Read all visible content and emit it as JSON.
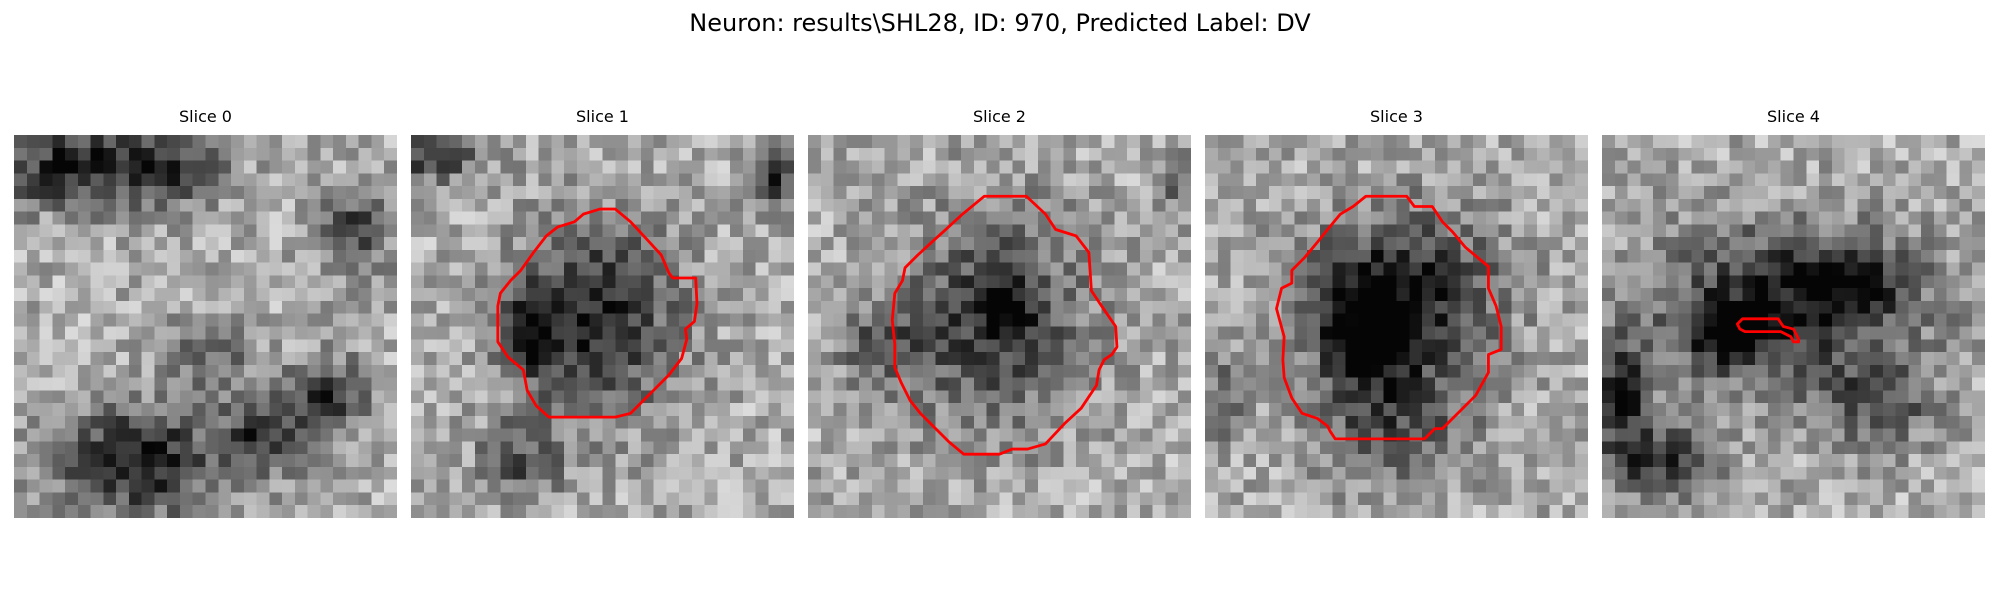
{
  "figure": {
    "title": "Neuron: results\\SHL28, ID: 970, Predicted Label: DV"
  },
  "panels": [
    {
      "title": "Slice 0",
      "contour": false
    },
    {
      "title": "Slice 1",
      "contour": true
    },
    {
      "title": "Slice 2",
      "contour": true
    },
    {
      "title": "Slice 3",
      "contour": true
    },
    {
      "title": "Slice 4",
      "contour": true
    }
  ],
  "colors": {
    "contour": "#ff0000",
    "background": "#ffffff"
  }
}
